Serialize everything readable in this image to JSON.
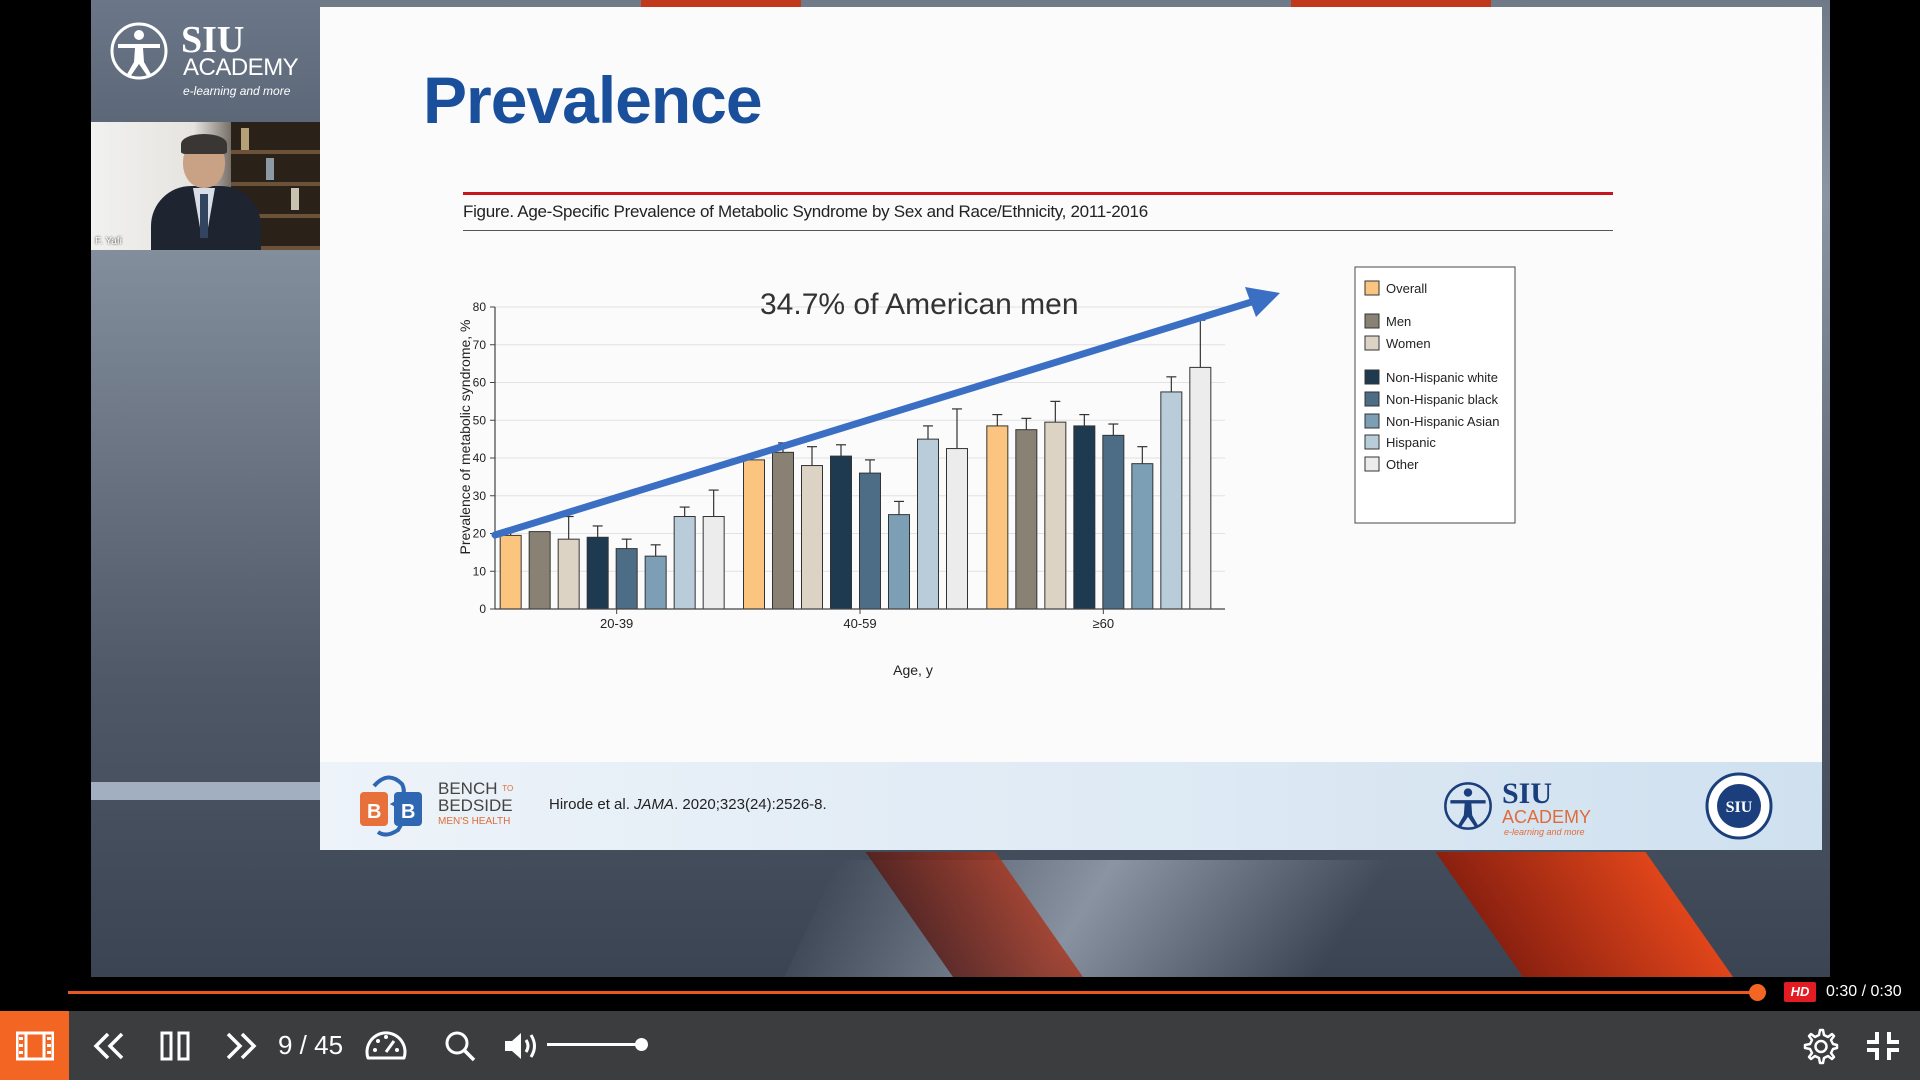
{
  "slide": {
    "title": "Prevalence",
    "figure_caption": "Figure. Age-Specific Prevalence of Metabolic Syndrome by Sex and Race/Ethnicity, 2011-2016",
    "annotation": "34.7% of American men",
    "citation_pre": "Hirode et al. ",
    "citation_journal": "JAMA",
    "citation_post": ". 2020;323(24):2526-8."
  },
  "presenter": {
    "name": "F. Yafi"
  },
  "branding": {
    "siu_line1": "SIU",
    "siu_line2": "ACADEMY",
    "siu_tagline": "e-learning and more",
    "b2b_line1": "BENCH",
    "b2b_line2": "BEDSIDE",
    "b2b_to": "TO",
    "b2b_line3": "MEN'S HEALTH",
    "seal_text": "SIU"
  },
  "chart_data": {
    "type": "bar",
    "title": "Figure. Age-Specific Prevalence of Metabolic Syndrome by Sex and Race/Ethnicity, 2011-2016",
    "xlabel": "Age, y",
    "ylabel": "Prevalence of metabolic syndrome, %",
    "ylim": [
      0,
      80
    ],
    "yticks": [
      0,
      10,
      20,
      30,
      40,
      50,
      60,
      70,
      80
    ],
    "categories": [
      "20-39",
      "40-59",
      "≥60"
    ],
    "legend_position": "right",
    "grid": true,
    "series": [
      {
        "name": "Overall",
        "color": "#fbc57f",
        "values": [
          19.5,
          39.5,
          48.5
        ],
        "error": [
          1.5,
          0,
          3
        ]
      },
      {
        "name": "Men",
        "color": "#8a8175",
        "values": [
          20.5,
          41.5,
          47.5
        ],
        "error": [
          0,
          2.5,
          3
        ]
      },
      {
        "name": "Women",
        "color": "#ddd3c5",
        "values": [
          18.5,
          38,
          49.5
        ],
        "error": [
          6,
          5,
          5.5
        ]
      },
      {
        "name": "Non-Hispanic white",
        "color": "#1d3a50",
        "values": [
          19,
          40.5,
          48.5
        ],
        "error": [
          3,
          3,
          3
        ]
      },
      {
        "name": "Non-Hispanic black",
        "color": "#4d6d87",
        "values": [
          16,
          36,
          46
        ],
        "error": [
          2.5,
          3.5,
          3
        ]
      },
      {
        "name": "Non-Hispanic Asian",
        "color": "#7d9fb6",
        "values": [
          14,
          25,
          38.5
        ],
        "error": [
          3,
          3.5,
          4.5
        ]
      },
      {
        "name": "Hispanic",
        "color": "#b9ccda",
        "values": [
          24.5,
          45,
          57.5
        ],
        "error": [
          2.5,
          3.5,
          4
        ]
      },
      {
        "name": "Other",
        "color": "#ececec",
        "values": [
          24.5,
          42.5,
          64
        ],
        "error": [
          7,
          10.5,
          12.5
        ]
      }
    ]
  },
  "player": {
    "slide_counter": "9 / 45",
    "hd_label": "HD",
    "time": "0:30 / 0:30",
    "progress": 1.0,
    "volume": 0.92
  },
  "colors": {
    "accent": "#f26522",
    "title_blue": "#1a4f9c",
    "arrow_blue": "#3a6fc4",
    "bar_bg": "#3c3d3f"
  }
}
